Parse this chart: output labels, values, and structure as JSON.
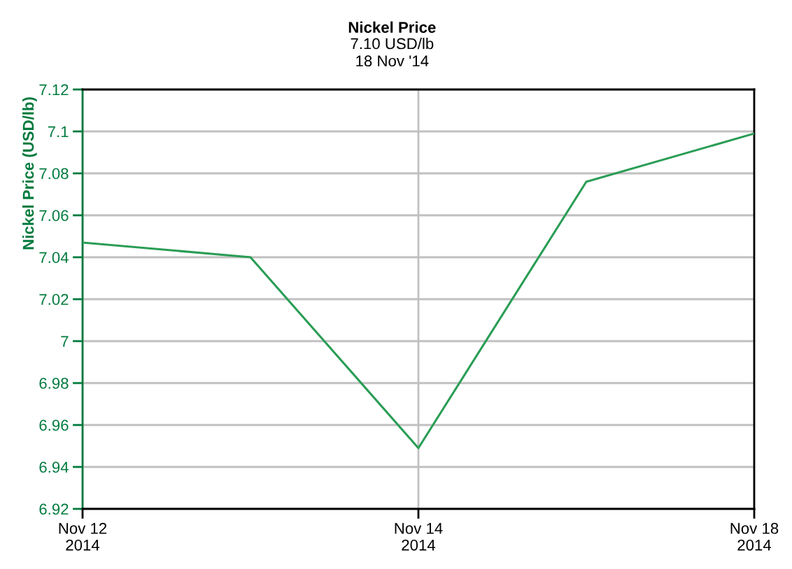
{
  "chart_data": {
    "type": "line",
    "title": "Nickel Price",
    "subtitle": "7.10 USD/lb\n18 Nov '14",
    "ylabel": "Nickel Price (USD/lb)",
    "categories": [
      "Nov 12\n2014",
      null,
      "Nov 14\n2014",
      null,
      "Nov 18\n2014"
    ],
    "series": [
      {
        "color": "#2a9d55",
        "values": [
          7.047,
          7.04,
          6.949,
          7.076,
          7.099
        ]
      }
    ],
    "ylim": [
      6.92,
      7.12
    ],
    "yticks": [
      6.92,
      6.94,
      6.96,
      6.98,
      7,
      7.02,
      7.04,
      7.06,
      7.08,
      7.1,
      7.12
    ],
    "grid": true
  }
}
